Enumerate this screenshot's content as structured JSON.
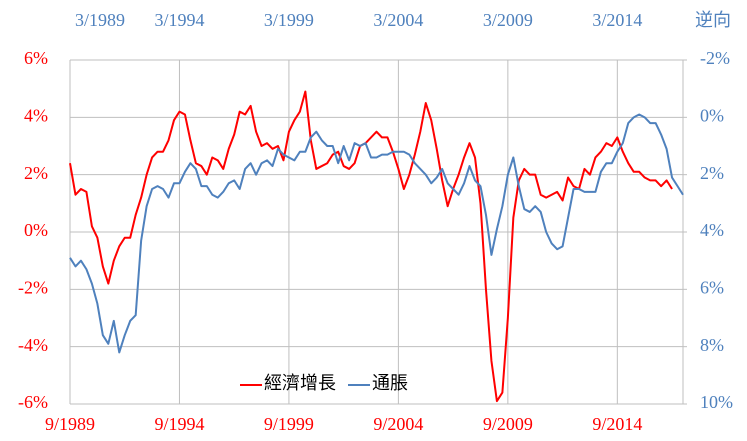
{
  "chart_data": {
    "type": "line",
    "categories": [
      "9/1989",
      null,
      null,
      null,
      null,
      null,
      null,
      null,
      null,
      null,
      null,
      null,
      null,
      null,
      null,
      null,
      null,
      null,
      null,
      null,
      "9/1994",
      null,
      null,
      null,
      null,
      null,
      null,
      null,
      null,
      null,
      null,
      null,
      null,
      null,
      null,
      null,
      null,
      null,
      null,
      null,
      "9/1999",
      null,
      null,
      null,
      null,
      null,
      null,
      null,
      null,
      null,
      null,
      null,
      null,
      null,
      null,
      null,
      null,
      null,
      null,
      null,
      "9/2004",
      null,
      null,
      null,
      null,
      null,
      null,
      null,
      null,
      null,
      null,
      null,
      null,
      null,
      null,
      null,
      null,
      null,
      null,
      null,
      "9/2009",
      null,
      null,
      null,
      null,
      null,
      null,
      null,
      null,
      null,
      null,
      null,
      null,
      null,
      null,
      null,
      null,
      null,
      null,
      null,
      "9/2014",
      null,
      null,
      null,
      null,
      null,
      null,
      null,
      null,
      null,
      null,
      null,
      null
    ],
    "x2ticks": [
      "3/1989",
      "3/1994",
      "3/1999",
      "3/2004",
      "3/2009",
      "3/2014"
    ],
    "series": [
      {
        "name": "經濟增長",
        "color": "#ff0000",
        "axis": "y",
        "values": [
          2.4,
          1.3,
          1.5,
          1.4,
          0.2,
          -0.2,
          -1.2,
          -1.8,
          -1.0,
          -0.5,
          -0.2,
          -0.2,
          0.6,
          1.2,
          2.0,
          2.6,
          2.8,
          2.8,
          3.2,
          3.9,
          4.2,
          4.1,
          3.2,
          2.4,
          2.3,
          2.0,
          2.6,
          2.5,
          2.2,
          2.9,
          3.4,
          4.2,
          4.1,
          4.4,
          3.5,
          3.0,
          3.1,
          2.9,
          3.0,
          2.5,
          3.5,
          3.9,
          4.2,
          4.9,
          3.2,
          2.2,
          2.3,
          2.4,
          2.7,
          2.8,
          2.3,
          2.2,
          2.4,
          3.0,
          3.1,
          3.3,
          3.5,
          3.3,
          3.3,
          2.8,
          2.2,
          1.5,
          2.0,
          2.7,
          3.5,
          4.5,
          3.9,
          2.9,
          1.8,
          0.9,
          1.5,
          2.0,
          2.6,
          3.1,
          2.6,
          1.0,
          -2.0,
          -4.5,
          -5.9,
          -5.6,
          -3.0,
          0.5,
          1.8,
          2.2,
          2.0,
          2.0,
          1.3,
          1.2,
          1.3,
          1.4,
          1.1,
          1.9,
          1.6,
          1.5,
          2.2,
          2.0,
          2.6,
          2.8,
          3.1,
          3.0,
          3.3,
          2.8,
          2.4,
          2.1,
          2.1,
          1.9,
          1.8,
          1.8,
          1.6,
          1.8,
          1.5,
          null,
          null
        ]
      },
      {
        "name": "通脹",
        "color": "#4f81bd",
        "axis": "y2",
        "values": [
          4.9,
          5.2,
          5.0,
          5.3,
          5.8,
          6.5,
          7.6,
          7.9,
          7.1,
          8.2,
          7.6,
          7.1,
          6.9,
          4.3,
          3.1,
          2.5,
          2.4,
          2.5,
          2.8,
          2.3,
          2.3,
          1.9,
          1.6,
          1.8,
          2.4,
          2.4,
          2.7,
          2.8,
          2.6,
          2.3,
          2.2,
          2.5,
          1.8,
          1.6,
          2.0,
          1.6,
          1.5,
          1.7,
          1.1,
          1.3,
          1.4,
          1.5,
          1.2,
          1.2,
          0.7,
          0.5,
          0.8,
          1.0,
          1.0,
          1.6,
          1.0,
          1.5,
          0.9,
          1.0,
          0.9,
          1.4,
          1.4,
          1.3,
          1.3,
          1.2,
          1.2,
          1.2,
          1.3,
          1.6,
          1.8,
          2.0,
          2.3,
          2.1,
          1.8,
          2.3,
          2.5,
          2.7,
          2.3,
          1.7,
          2.2,
          2.4,
          3.4,
          4.8,
          3.9,
          3.1,
          2.0,
          1.4,
          2.4,
          3.2,
          3.3,
          3.1,
          3.3,
          4.0,
          4.4,
          4.6,
          4.5,
          3.5,
          2.5,
          2.5,
          2.6,
          2.6,
          2.6,
          1.9,
          1.6,
          1.6,
          1.2,
          0.9,
          0.2,
          0.0,
          -0.1,
          0.0,
          0.2,
          0.2,
          0.6,
          1.1,
          2.1,
          2.4,
          2.7
        ]
      }
    ],
    "ylim": [
      -6,
      6
    ],
    "yticks": [
      {
        "value": -6,
        "label": "-6%"
      },
      {
        "value": -4,
        "label": "-4%"
      },
      {
        "value": -2,
        "label": "-2%"
      },
      {
        "value": 0,
        "label": "0%"
      },
      {
        "value": 2,
        "label": "2%"
      },
      {
        "value": 4,
        "label": "4%"
      },
      {
        "value": 6,
        "label": "6%"
      }
    ],
    "y2lim": [
      10,
      -2
    ],
    "y2ticks": [
      {
        "value": 10,
        "label": "10%"
      },
      {
        "value": 8,
        "label": "8%"
      },
      {
        "value": 6,
        "label": "6%"
      },
      {
        "value": 4,
        "label": "4%"
      },
      {
        "value": 2,
        "label": "2%"
      },
      {
        "value": 0,
        "label": "0%"
      },
      {
        "value": -2,
        "label": "-2%"
      }
    ],
    "y2_label": "逆向",
    "grid": true,
    "legend": "bottom"
  }
}
